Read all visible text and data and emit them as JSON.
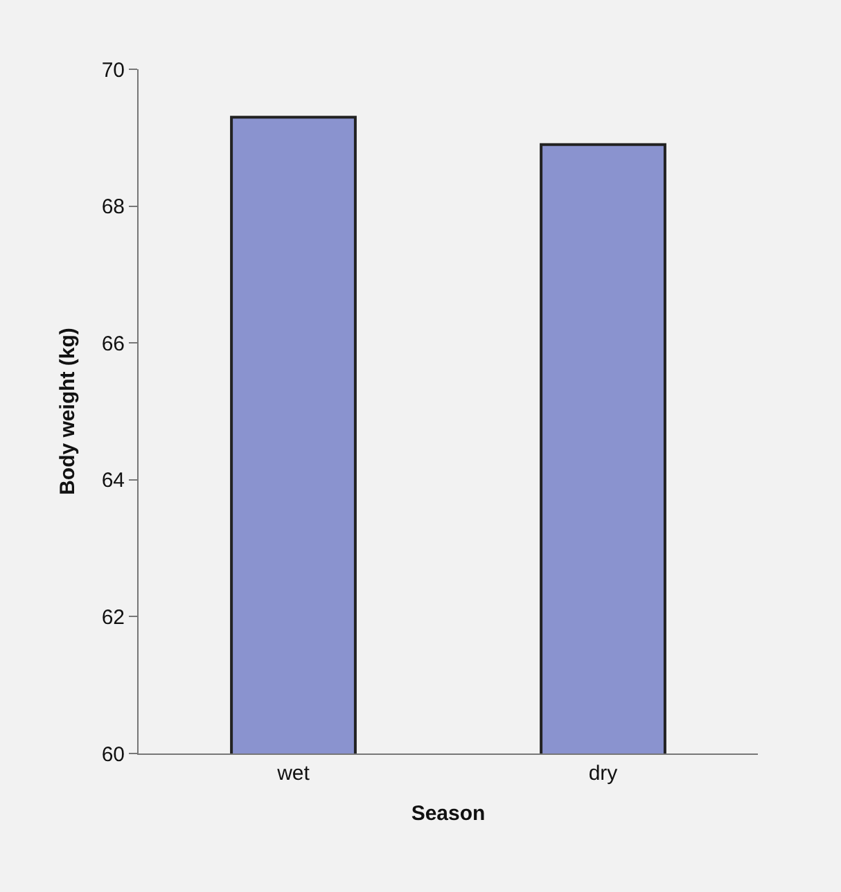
{
  "chart_data": {
    "type": "bar",
    "xlabel": "Season",
    "ylabel": "Body weight (kg)",
    "categories": [
      "wet",
      "dry"
    ],
    "values": [
      69.3,
      68.9
    ],
    "color": "#8a93cf",
    "ylim": [
      60,
      70
    ],
    "yticks": [
      60,
      62,
      64,
      66,
      68,
      70
    ],
    "grid": false,
    "legend": false
  }
}
